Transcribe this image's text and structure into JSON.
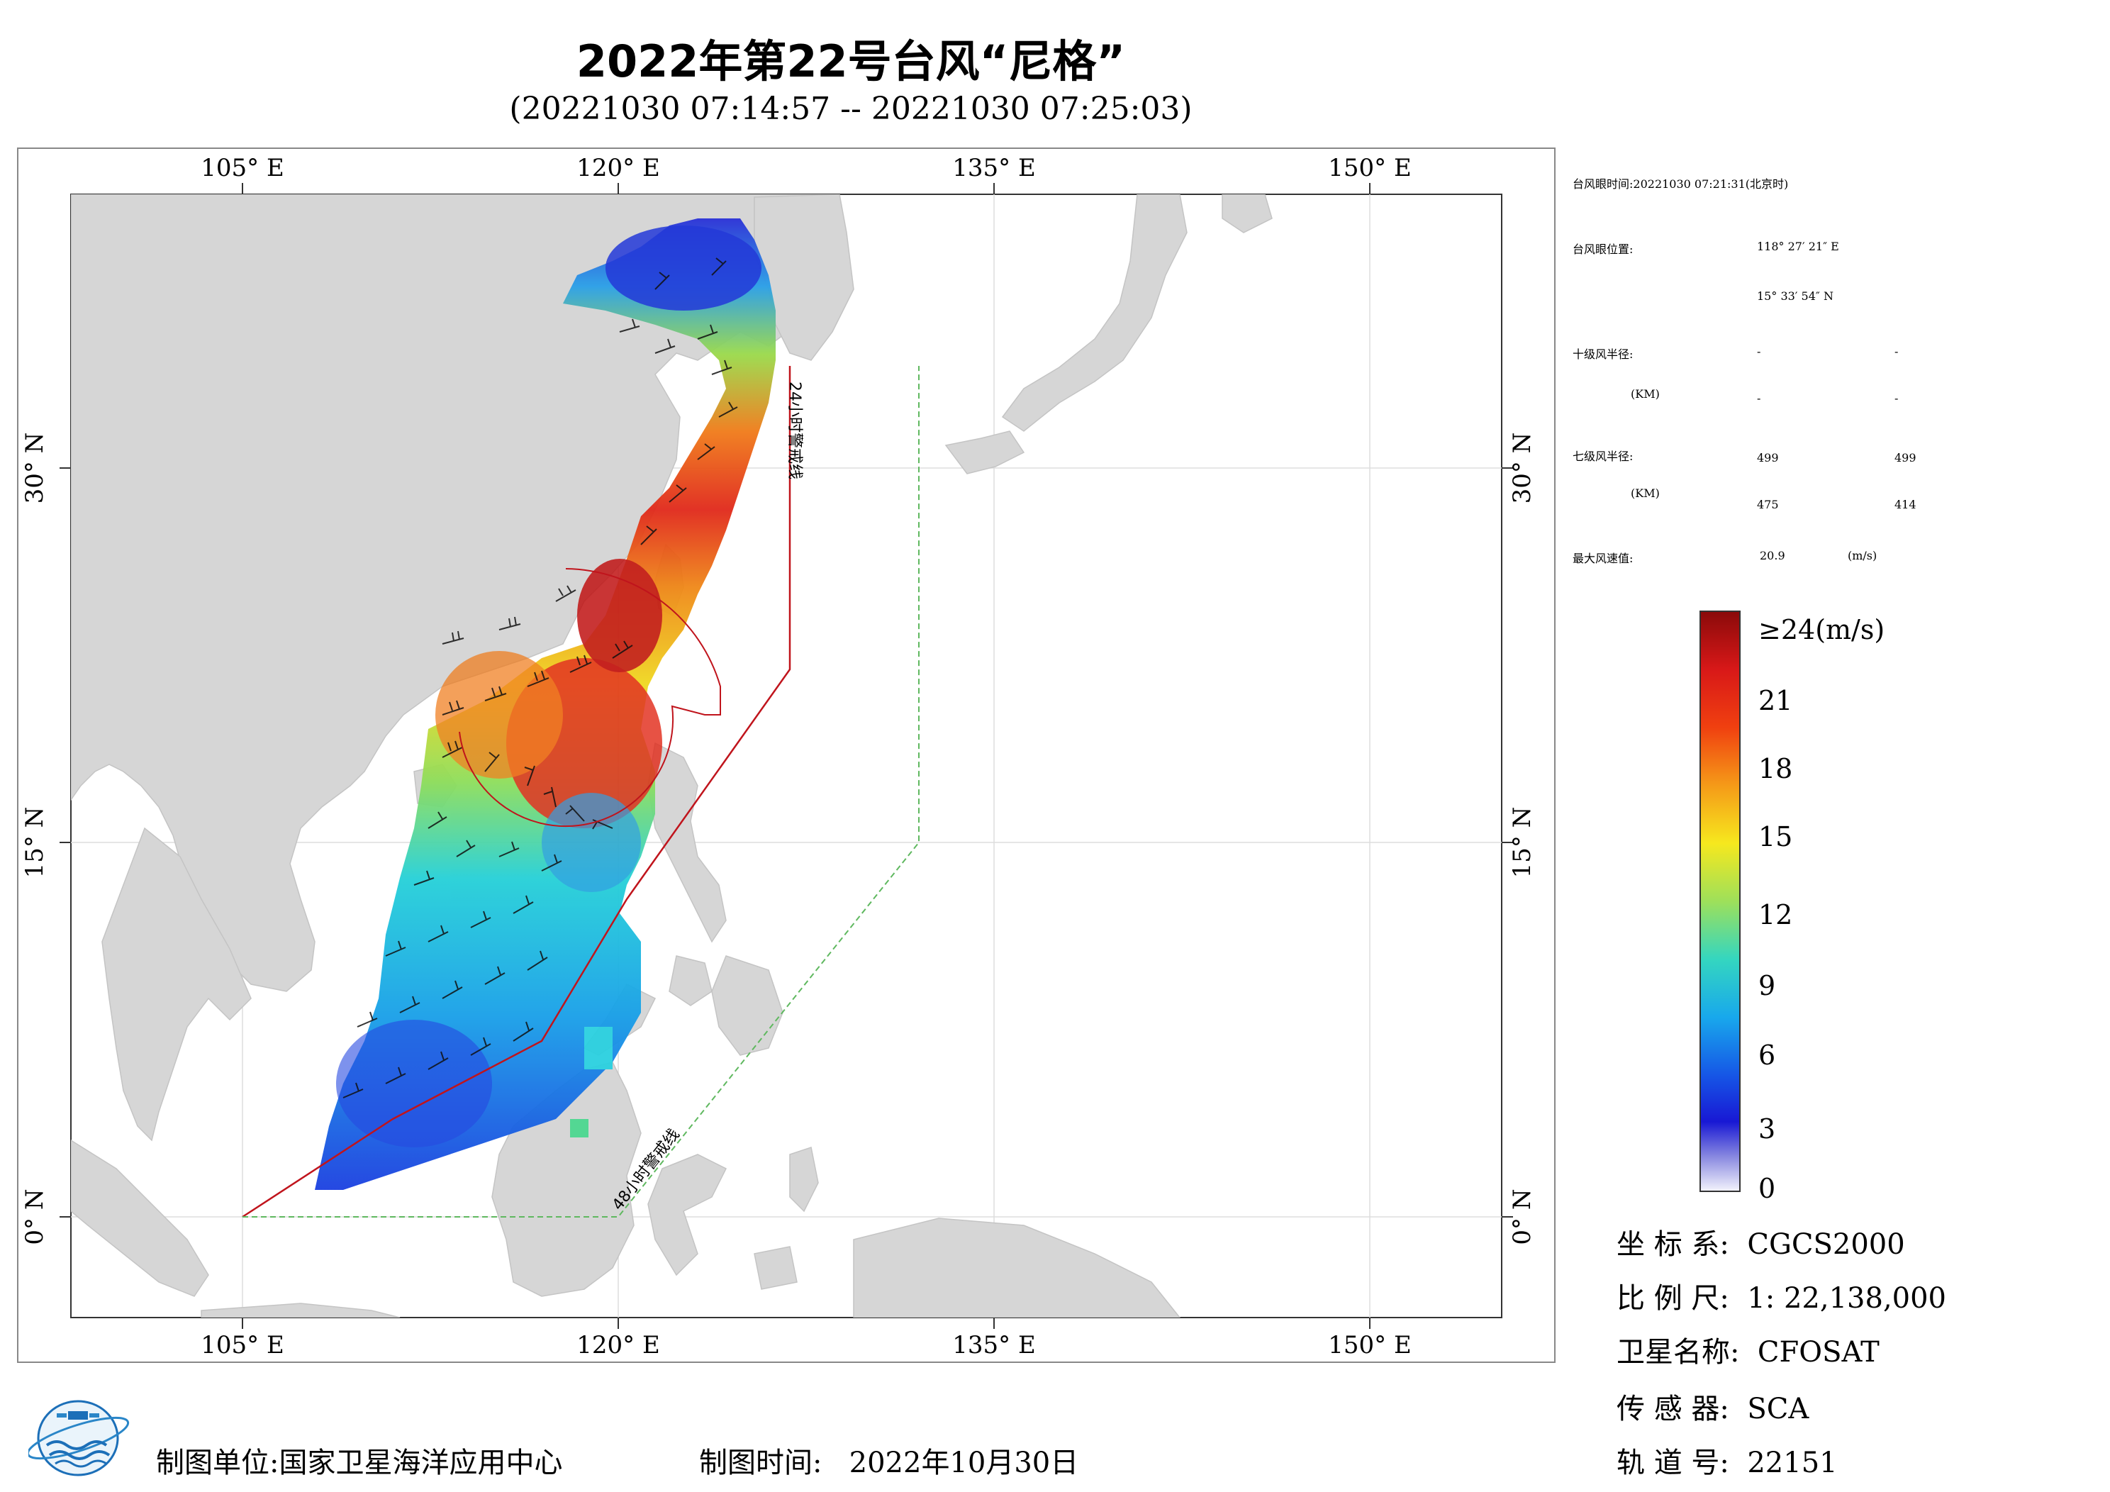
{
  "title": "2022年第22号台风“尼格”",
  "subtitle": "(20221030 07:14:57 -- 20221030 07:25:03)",
  "map": {
    "top_lon_labels": [
      "105° E",
      "120° E",
      "135° E",
      "150° E"
    ],
    "bottom_lon_labels": [
      "105° E",
      "120° E",
      "135° E",
      "150° E"
    ],
    "left_lat_labels": [
      "30° N",
      "15° N",
      "0° N"
    ],
    "right_lat_labels": [
      "30° N",
      "15° N",
      "0° N"
    ],
    "warning_line_24h": "24小时警戒线",
    "warning_line_48h": "48小时警戒线",
    "colors": {
      "land": "#d6d6d6",
      "sea": "#ffffff",
      "warn24": "#c0141c",
      "warn48": "#5fb85f",
      "grid": "#cccccc"
    }
  },
  "info": {
    "eye_time_label": "台风眼时间:",
    "eye_time_value": "20221030 07:21:31(北京时)",
    "eye_pos_label": "台风眼位置:",
    "eye_lon": "118° 27′ 21″ E",
    "eye_lat": "15° 33′ 54″ N",
    "r10_label": "十级风半径:",
    "r10_unit": "(KM)",
    "r10_values": [
      "-",
      "-",
      "-",
      "-"
    ],
    "r7_label": "七级风半径:",
    "r7_unit": "(KM)",
    "r7_values": [
      "499",
      "499",
      "475",
      "414"
    ],
    "max_wind_label": "最大风速值:",
    "max_wind_value": "20.9",
    "max_wind_unit": "(m/s)"
  },
  "colorbar": {
    "labels": [
      "≥24(m/s)",
      "21",
      "18",
      "15",
      "12",
      "9",
      "6",
      "3",
      "0"
    ],
    "values": [
      24,
      21,
      18,
      15,
      12,
      9,
      6,
      3,
      0
    ]
  },
  "meta": {
    "crs_label": "坐 标 系:",
    "crs_value": "CGCS2000",
    "scale_label": "比 例 尺:",
    "scale_value": "1: 22,138,000",
    "satellite_label": "卫星名称:",
    "satellite_value": "CFOSAT",
    "sensor_label": "传 感 器:",
    "sensor_value": "SCA",
    "orbit_label": "轨 道 号:",
    "orbit_value": "22151"
  },
  "footer": {
    "producer_label": "制图单位:",
    "producer_value": "国家卫星海洋应用中心",
    "date_label": "制图时间:",
    "date_value": "2022年10月30日"
  }
}
